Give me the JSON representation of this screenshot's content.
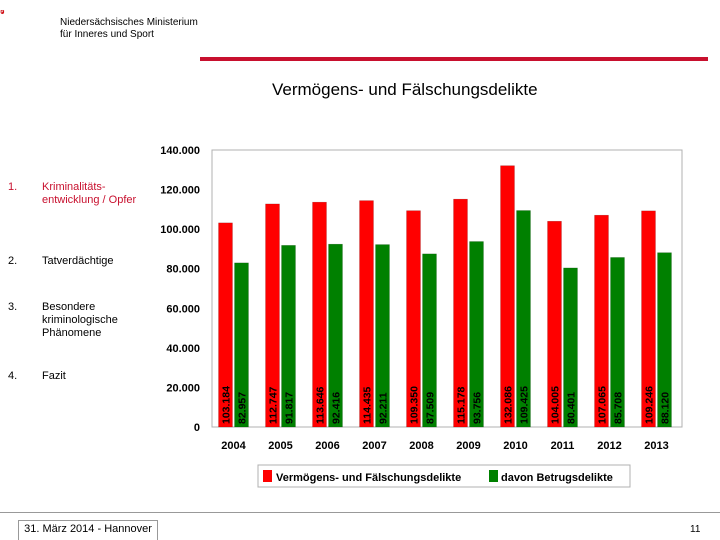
{
  "header": {
    "ministry_line1": "Niedersächsisches Ministerium",
    "ministry_line2": "für Inneres und Sport",
    "slide_title": "Vermögens- und Fälschungsdelikte"
  },
  "nav": [
    {
      "num": "1.",
      "label": "Kriminalitäts-entwicklung / Opfer",
      "active": true
    },
    {
      "num": "2.",
      "label": "Tatverdächtige",
      "active": false
    },
    {
      "num": "3.",
      "label": "Besondere kriminologische Phänomene",
      "active": false
    },
    {
      "num": "4.",
      "label": "Fazit",
      "active": false
    }
  ],
  "footer": {
    "date_place": "31. März 2014 - Hannover",
    "page_number": "11"
  },
  "chart_data": {
    "type": "bar",
    "categories": [
      "2004",
      "2005",
      "2006",
      "2007",
      "2008",
      "2009",
      "2010",
      "2011",
      "2012",
      "2013"
    ],
    "series": [
      {
        "name": "Vermögens- und Fälschungsdelikte",
        "color": "#ff0000",
        "values": [
          103184,
          112747,
          113646,
          114435,
          109350,
          115178,
          132086,
          104005,
          107065,
          109246
        ],
        "labels": [
          "103.184",
          "112.747",
          "113.646",
          "114.435",
          "109.350",
          "115.178",
          "132.086",
          "104.005",
          "107.065",
          "109.246"
        ]
      },
      {
        "name": "davon Betrugsdelikte",
        "color": "#008000",
        "values": [
          82957,
          91817,
          92416,
          92211,
          87509,
          93756,
          109425,
          80401,
          85708,
          88120
        ],
        "labels": [
          "82.957",
          "91.817",
          "92.416",
          "92.211",
          "87.509",
          "93.756",
          "109.425",
          "80.401",
          "85.708",
          "88.120"
        ]
      }
    ],
    "ylim": [
      0,
      140000
    ],
    "yticks": [
      0,
      20000,
      40000,
      60000,
      80000,
      100000,
      120000,
      140000
    ],
    "ytick_labels": [
      "0",
      "20.000",
      "40.000",
      "60.000",
      "80.000",
      "100.000",
      "120.000",
      "140.000"
    ],
    "grid": false,
    "legend_position": "bottom"
  }
}
